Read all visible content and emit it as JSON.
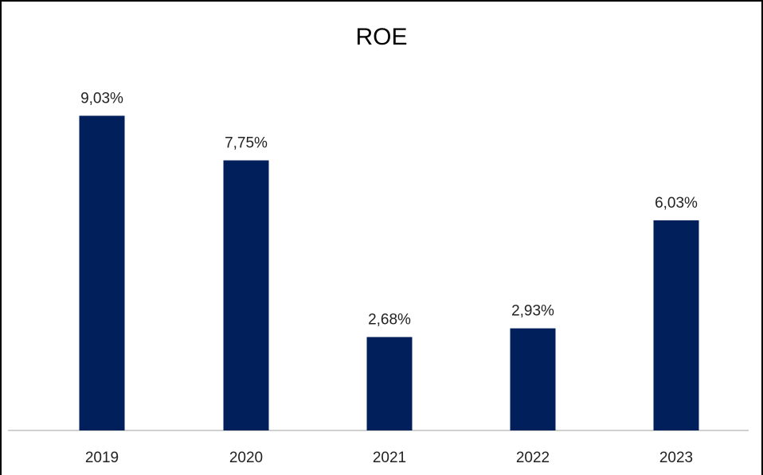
{
  "chart_data": {
    "type": "bar",
    "title": "ROE",
    "categories": [
      "2019",
      "2020",
      "2021",
      "2022",
      "2023"
    ],
    "values": [
      9.03,
      7.75,
      2.68,
      2.93,
      6.03
    ],
    "data_labels": [
      "9,03%",
      "7,75%",
      "2,68%",
      "2,93%",
      "6,03%"
    ],
    "unit": "%",
    "ylim": [
      0,
      10
    ],
    "grid": false,
    "legend": "none",
    "bar_color": "#001f5b",
    "axis_color": "#d0d0d0"
  }
}
